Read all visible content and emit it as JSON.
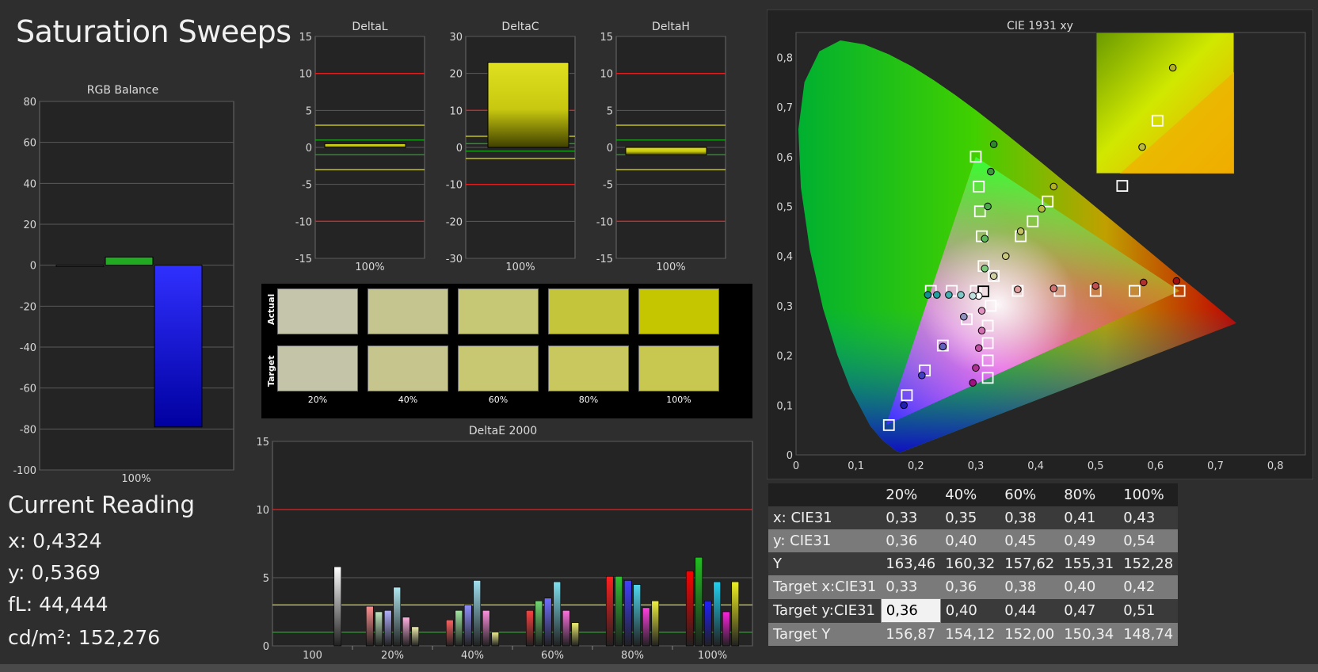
{
  "page_title": "Saturation Sweeps",
  "current_reading": {
    "title": "Current Reading",
    "lines": [
      "x: 0,4324",
      "y: 0,5369",
      "fL: 44,444",
      "cd/m²: 152,276"
    ]
  },
  "swatches": {
    "row_labels": [
      "Actual",
      "Target"
    ],
    "labels": [
      "20%",
      "40%",
      "60%",
      "80%",
      "100%"
    ],
    "actual_colors": [
      "#c4c5aa",
      "#c5c58f",
      "#c7c875",
      "#c4c53a",
      "#c6c600"
    ],
    "target_colors": [
      "#c4c4a8",
      "#c6c58e",
      "#c8c872",
      "#c8c85e",
      "#c8c850"
    ]
  },
  "table": {
    "header": [
      "",
      "20%",
      "40%",
      "60%",
      "80%",
      "100%"
    ],
    "rows": [
      {
        "label": "x: CIE31",
        "values": [
          "0,33",
          "0,35",
          "0,38",
          "0,41",
          "0,43"
        ]
      },
      {
        "label": "y: CIE31",
        "values": [
          "0,36",
          "0,40",
          "0,45",
          "0,49",
          "0,54"
        ]
      },
      {
        "label": "Y",
        "values": [
          "163,46",
          "160,32",
          "157,62",
          "155,31",
          "152,28"
        ]
      },
      {
        "label": "Target x:CIE31",
        "values": [
          "0,33",
          "0,36",
          "0,38",
          "0,40",
          "0,42"
        ]
      },
      {
        "label": "Target y:CIE31",
        "values": [
          "0,36",
          "0,40",
          "0,44",
          "0,47",
          "0,51"
        ]
      },
      {
        "label": "Target Y",
        "values": [
          "156,87",
          "154,12",
          "152,00",
          "150,34",
          "148,74"
        ]
      }
    ]
  },
  "colors": {
    "threshold_red": "#e02020",
    "threshold_yellow": "#e0e020",
    "threshold_green": "#20a020",
    "bar_yellow": "#c8c820",
    "rgb_red": "#ff2020",
    "rgb_green": "#22aa22",
    "rgb_blue": "#2020ff"
  },
  "chart_data": [
    {
      "id": "rgb",
      "type": "bar",
      "title": "RGB Balance",
      "categories": [
        "100%"
      ],
      "series": [
        {
          "values": [
            0
          ]
        },
        {
          "values": [
            4
          ]
        },
        {
          "values": [
            -79
          ]
        }
      ],
      "ylim": [
        -100,
        80
      ],
      "yticks": [
        -100,
        -80,
        -60,
        -40,
        -20,
        0,
        20,
        40,
        60,
        80
      ]
    },
    {
      "id": "deltal",
      "type": "bar",
      "title": "DeltaL",
      "categories": [
        "100%"
      ],
      "values": [
        0.5
      ],
      "ylim": [
        -15,
        15
      ],
      "yticks": [
        -15,
        -10,
        -5,
        0,
        5,
        10,
        15
      ],
      "thresholds": [
        10,
        -10,
        3,
        -3,
        1,
        -1
      ]
    },
    {
      "id": "deltac",
      "type": "bar",
      "title": "DeltaC",
      "categories": [
        "100%"
      ],
      "values": [
        23
      ],
      "ylim": [
        -30,
        30
      ],
      "yticks": [
        -30,
        -20,
        -10,
        0,
        10,
        20,
        30
      ],
      "thresholds": [
        10,
        -10,
        3,
        -3,
        1,
        -1
      ]
    },
    {
      "id": "deltah",
      "type": "bar",
      "title": "DeltaH",
      "categories": [
        "100%"
      ],
      "values": [
        -1
      ],
      "ylim": [
        -15,
        15
      ],
      "yticks": [
        -15,
        -10,
        -5,
        0,
        5,
        10,
        15
      ],
      "thresholds": [
        10,
        -10,
        3,
        -3,
        1,
        -1
      ]
    },
    {
      "id": "de2000",
      "type": "bar",
      "title": "DeltaE 2000",
      "categories": [
        "100",
        "20%",
        "40%",
        "60%",
        "80%",
        "100%"
      ],
      "ylim": [
        0,
        15
      ],
      "yticks": [
        0,
        5,
        10,
        15
      ],
      "thresholds": [
        10,
        3,
        1
      ],
      "groups": [
        {
          "bars": [
            {
              "value": 5.8,
              "color": "#ffffff"
            }
          ]
        },
        {
          "bars": [
            {
              "value": 2.9,
              "color": "#ff9090"
            },
            {
              "value": 2.5,
              "color": "#c0e8c0"
            },
            {
              "value": 2.6,
              "color": "#b0b0ff"
            },
            {
              "value": 4.3,
              "color": "#b0e8f0"
            },
            {
              "value": 2.1,
              "color": "#ffb0e0"
            },
            {
              "value": 1.4,
              "color": "#f0f0b0"
            }
          ]
        },
        {
          "bars": [
            {
              "value": 1.9,
              "color": "#ff6060"
            },
            {
              "value": 2.6,
              "color": "#a0e8a0"
            },
            {
              "value": 3.0,
              "color": "#9090ff"
            },
            {
              "value": 4.8,
              "color": "#a0e0f0"
            },
            {
              "value": 2.6,
              "color": "#ff90e0"
            },
            {
              "value": 1.0,
              "color": "#f0f090"
            }
          ]
        },
        {
          "bars": [
            {
              "value": 2.6,
              "color": "#ff4040"
            },
            {
              "value": 3.3,
              "color": "#70d870"
            },
            {
              "value": 3.5,
              "color": "#7070ff"
            },
            {
              "value": 4.7,
              "color": "#80e0f0"
            },
            {
              "value": 2.6,
              "color": "#ff70e0"
            },
            {
              "value": 1.7,
              "color": "#f0f070"
            }
          ]
        },
        {
          "bars": [
            {
              "value": 5.1,
              "color": "#ff2020"
            },
            {
              "value": 5.1,
              "color": "#30c030"
            },
            {
              "value": 4.8,
              "color": "#4040ff"
            },
            {
              "value": 4.5,
              "color": "#50d8f0"
            },
            {
              "value": 2.8,
              "color": "#ff40e0"
            },
            {
              "value": 3.3,
              "color": "#f0f040"
            }
          ]
        },
        {
          "bars": [
            {
              "value": 5.5,
              "color": "#ff0000"
            },
            {
              "value": 6.5,
              "color": "#20c020"
            },
            {
              "value": 3.3,
              "color": "#2020ff"
            },
            {
              "value": 4.7,
              "color": "#20d0f0"
            },
            {
              "value": 2.5,
              "color": "#ff20e0"
            },
            {
              "value": 4.7,
              "color": "#f0f020"
            }
          ]
        }
      ]
    },
    {
      "id": "cie",
      "type": "scatter",
      "title": "CIE 1931 xy",
      "xlim": [
        0,
        0.85
      ],
      "ylim": [
        0,
        0.85
      ],
      "xticks": [
        "0",
        "0,1",
        "0,2",
        "0,3",
        "0,4",
        "0,5",
        "0,6",
        "0,7",
        "0,8"
      ],
      "yticks": [
        "0",
        "0,1",
        "0,2",
        "0,3",
        "0,4",
        "0,5",
        "0,6",
        "0,7",
        "0,8"
      ],
      "gamut": [
        [
          0.64,
          0.33
        ],
        [
          0.3,
          0.6
        ],
        [
          0.15,
          0.06
        ]
      ],
      "targets": [
        [
          0.3127,
          0.329
        ],
        [
          0.3127,
          0.329
        ],
        [
          0.3,
          0.6
        ],
        [
          0.155,
          0.06
        ],
        [
          0.64,
          0.33
        ],
        [
          0.42,
          0.51
        ],
        [
          0.305,
          0.54
        ],
        [
          0.307,
          0.49
        ],
        [
          0.31,
          0.44
        ],
        [
          0.313,
          0.38
        ],
        [
          0.33,
          0.36
        ],
        [
          0.3,
          0.33
        ],
        [
          0.26,
          0.33
        ],
        [
          0.225,
          0.33
        ],
        [
          0.285,
          0.273
        ],
        [
          0.245,
          0.22
        ],
        [
          0.215,
          0.17
        ],
        [
          0.185,
          0.12
        ],
        [
          0.325,
          0.3
        ],
        [
          0.32,
          0.26
        ],
        [
          0.32,
          0.225
        ],
        [
          0.32,
          0.19
        ],
        [
          0.32,
          0.155
        ],
        [
          0.37,
          0.33
        ],
        [
          0.44,
          0.33
        ],
        [
          0.5,
          0.33
        ],
        [
          0.565,
          0.33
        ],
        [
          0.375,
          0.44
        ],
        [
          0.395,
          0.47
        ]
      ],
      "measured": [
        {
          "p": [
            0.33,
            0.625
          ],
          "c": "#2a8a2a"
        },
        {
          "p": [
            0.325,
            0.57
          ],
          "c": "#3a9a3a"
        },
        {
          "p": [
            0.32,
            0.5
          ],
          "c": "#4aaa4a"
        },
        {
          "p": [
            0.315,
            0.435
          ],
          "c": "#5aba5a"
        },
        {
          "p": [
            0.315,
            0.375
          ],
          "c": "#7aca7a"
        },
        {
          "p": [
            0.305,
            0.32
          ],
          "c": "#ffffff"
        },
        {
          "p": [
            0.295,
            0.32
          ],
          "c": "#c0e0e0"
        },
        {
          "p": [
            0.275,
            0.322
          ],
          "c": "#80c8c8"
        },
        {
          "p": [
            0.255,
            0.322
          ],
          "c": "#40b0b0"
        },
        {
          "p": [
            0.235,
            0.322
          ],
          "c": "#20a0a0"
        },
        {
          "p": [
            0.22,
            0.322
          ],
          "c": "#109090"
        },
        {
          "p": [
            0.28,
            0.278
          ],
          "c": "#9090c0"
        },
        {
          "p": [
            0.245,
            0.218
          ],
          "c": "#6060c0"
        },
        {
          "p": [
            0.21,
            0.16
          ],
          "c": "#4040c0"
        },
        {
          "p": [
            0.18,
            0.1
          ],
          "c": "#2020b0"
        },
        {
          "p": [
            0.31,
            0.29
          ],
          "c": "#e090c0"
        },
        {
          "p": [
            0.31,
            0.25
          ],
          "c": "#d070b0"
        },
        {
          "p": [
            0.305,
            0.215
          ],
          "c": "#c050a0"
        },
        {
          "p": [
            0.3,
            0.175
          ],
          "c": "#b03090"
        },
        {
          "p": [
            0.295,
            0.145
          ],
          "c": "#a01080"
        },
        {
          "p": [
            0.33,
            0.36
          ],
          "c": "#d0d0a0"
        },
        {
          "p": [
            0.35,
            0.4
          ],
          "c": "#c8c880"
        },
        {
          "p": [
            0.375,
            0.45
          ],
          "c": "#c0c060"
        },
        {
          "p": [
            0.41,
            0.495
          ],
          "c": "#b8b840"
        },
        {
          "p": [
            0.43,
            0.54
          ],
          "c": "#b0b020"
        },
        {
          "p": [
            0.37,
            0.333
          ],
          "c": "#e0a0a0"
        },
        {
          "p": [
            0.43,
            0.335
          ],
          "c": "#d07070"
        },
        {
          "p": [
            0.5,
            0.34
          ],
          "c": "#c05050"
        },
        {
          "p": [
            0.58,
            0.347
          ],
          "c": "#b03030"
        },
        {
          "p": [
            0.635,
            0.35
          ],
          "c": "#a01010"
        }
      ],
      "inset": {
        "xlim": [
          0.38,
          0.47
        ],
        "ylim": [
          0.48,
          0.56
        ],
        "targets": [
          [
            0.42,
            0.51
          ],
          [
            0.397,
            0.473
          ]
        ],
        "measured": [
          {
            "p": [
              0.43,
              0.54
            ],
            "c": "#b0b020"
          },
          {
            "p": [
              0.41,
              0.495
            ],
            "c": "#b8b840"
          }
        ]
      }
    }
  ]
}
